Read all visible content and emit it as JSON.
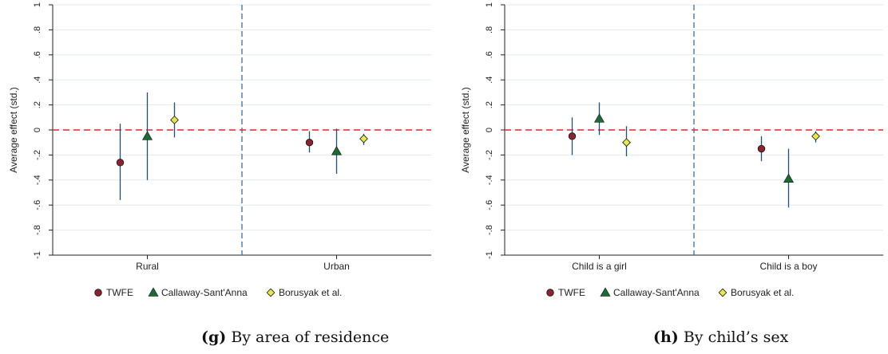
{
  "chart_data": [
    {
      "type": "scatter",
      "subtype": "coefficient-plot",
      "caption_letter": "(g)",
      "caption_text": "By area of residence",
      "ylabel": "Average effect (std.)",
      "xlabel": "",
      "ylim": [
        -1,
        1
      ],
      "yticks": [
        -1,
        -0.8,
        -0.6,
        -0.4,
        -0.2,
        0,
        0.2,
        0.4,
        0.6,
        0.8,
        1
      ],
      "ytick_labels": [
        "-1",
        "-.8",
        "-.6",
        "-.4",
        "-.2",
        "0",
        ".2",
        ".4",
        ".6",
        ".8",
        "1"
      ],
      "grid": true,
      "legend_position": "bottom",
      "categories": [
        "Rural",
        "Urban"
      ],
      "reference_line": 0,
      "series": [
        {
          "name": "TWFE",
          "marker": "circle",
          "color": "#8b2331",
          "values": [
            -0.26,
            -0.1
          ],
          "ci_low": [
            -0.56,
            -0.18
          ],
          "ci_high": [
            0.05,
            -0.01
          ]
        },
        {
          "name": "Callaway-Sant'Anna",
          "marker": "triangle",
          "color": "#1a6b34",
          "values": [
            -0.05,
            -0.17
          ],
          "ci_low": [
            -0.4,
            -0.35
          ],
          "ci_high": [
            0.3,
            0.01
          ]
        },
        {
          "name": "Borusyak et al.",
          "marker": "diamond",
          "color": "#e8e84a",
          "values": [
            0.08,
            -0.07
          ],
          "ci_low": [
            -0.06,
            -0.12
          ],
          "ci_high": [
            0.22,
            -0.03
          ]
        }
      ]
    },
    {
      "type": "scatter",
      "subtype": "coefficient-plot",
      "caption_letter": "(h)",
      "caption_text": "By child’s sex",
      "ylabel": "Average effect (std.)",
      "xlabel": "",
      "ylim": [
        -1,
        1
      ],
      "yticks": [
        -1,
        -0.8,
        -0.6,
        -0.4,
        -0.2,
        0,
        0.2,
        0.4,
        0.6,
        0.8,
        1
      ],
      "ytick_labels": [
        "-1",
        "-.8",
        "-.6",
        "-.4",
        "-.2",
        "0",
        ".2",
        ".4",
        ".6",
        ".8",
        "1"
      ],
      "grid": true,
      "legend_position": "bottom",
      "categories": [
        "Child is a girl",
        "Child is a boy"
      ],
      "reference_line": 0,
      "series": [
        {
          "name": "TWFE",
          "marker": "circle",
          "color": "#8b2331",
          "values": [
            -0.05,
            -0.15
          ],
          "ci_low": [
            -0.2,
            -0.25
          ],
          "ci_high": [
            0.1,
            -0.05
          ]
        },
        {
          "name": "Callaway-Sant'Anna",
          "marker": "triangle",
          "color": "#1a6b34",
          "values": [
            0.09,
            -0.39
          ],
          "ci_low": [
            -0.04,
            -0.62
          ],
          "ci_high": [
            0.22,
            -0.15
          ]
        },
        {
          "name": "Borusyak et al.",
          "marker": "diamond",
          "color": "#e8e84a",
          "values": [
            -0.1,
            -0.05
          ],
          "ci_low": [
            -0.21,
            -0.1
          ],
          "ci_high": [
            0.03,
            -0.01
          ]
        }
      ]
    }
  ],
  "colors": {
    "ci_line": "#1f4e79",
    "reference_line": "#e0262b",
    "separator_line": "#3a6ea5",
    "grid": "#e4e8ec",
    "axis": "#222222",
    "marker_outline": "#111111"
  }
}
